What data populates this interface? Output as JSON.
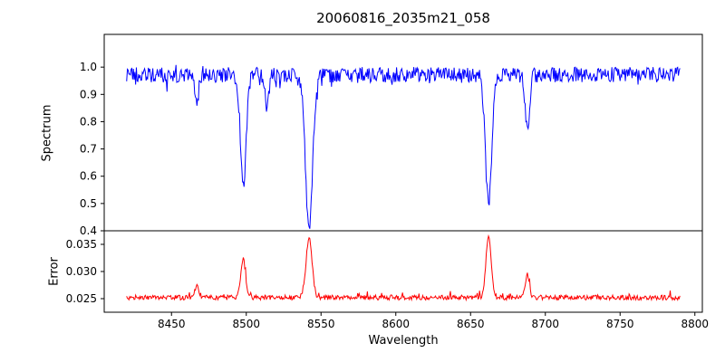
{
  "chart_data": {
    "type": "line",
    "title": "20060816_2035m21_058",
    "xlabel": "Wavelength",
    "x_range": [
      8420,
      8790
    ],
    "x_step": 0.5,
    "xlim": [
      8405,
      8805
    ],
    "xticks": [
      8450,
      8500,
      8550,
      8600,
      8650,
      8700,
      8750,
      8800
    ],
    "legend": "none",
    "grid": false,
    "panels": [
      {
        "name": "spectrum",
        "ylabel": "Spectrum",
        "color": "#0000ff",
        "ylim": [
          0.4,
          1.12
        ],
        "yticks": [
          0.4,
          0.5,
          0.6,
          0.7,
          0.8,
          0.9,
          1.0
        ],
        "ytick_labels": [
          "0.4",
          "0.5",
          "0.6",
          "0.7",
          "0.8",
          "0.9",
          "1.0"
        ],
        "baseline": 0.972,
        "noise_amplitude": 0.028,
        "features": [
          {
            "center": 8467,
            "amplitude": -0.09,
            "sigma": 1.3
          },
          {
            "center": 8498,
            "amplitude": -0.4,
            "sigma": 1.9
          },
          {
            "center": 8514,
            "amplitude": -0.1,
            "sigma": 1.2
          },
          {
            "center": 8542,
            "amplitude": -0.55,
            "sigma": 2.4
          },
          {
            "center": 8662,
            "amplitude": -0.47,
            "sigma": 2.1
          },
          {
            "center": 8688,
            "amplitude": -0.19,
            "sigma": 1.5
          }
        ]
      },
      {
        "name": "error",
        "ylabel": "Error",
        "color": "#ff0000",
        "ylim": [
          0.0225,
          0.0375
        ],
        "yticks": [
          0.025,
          0.03,
          0.035
        ],
        "ytick_labels": [
          "0.025",
          "0.030",
          "0.035"
        ],
        "baseline": 0.0252,
        "noise_amplitude": 0.00045,
        "features": [
          {
            "center": 8467,
            "amplitude": 0.002,
            "sigma": 1.4
          },
          {
            "center": 8498,
            "amplitude": 0.007,
            "sigma": 1.6
          },
          {
            "center": 8542,
            "amplitude": 0.011,
            "sigma": 2.0
          },
          {
            "center": 8662,
            "amplitude": 0.011,
            "sigma": 1.8
          },
          {
            "center": 8688,
            "amplitude": 0.0042,
            "sigma": 1.4
          }
        ]
      }
    ]
  }
}
